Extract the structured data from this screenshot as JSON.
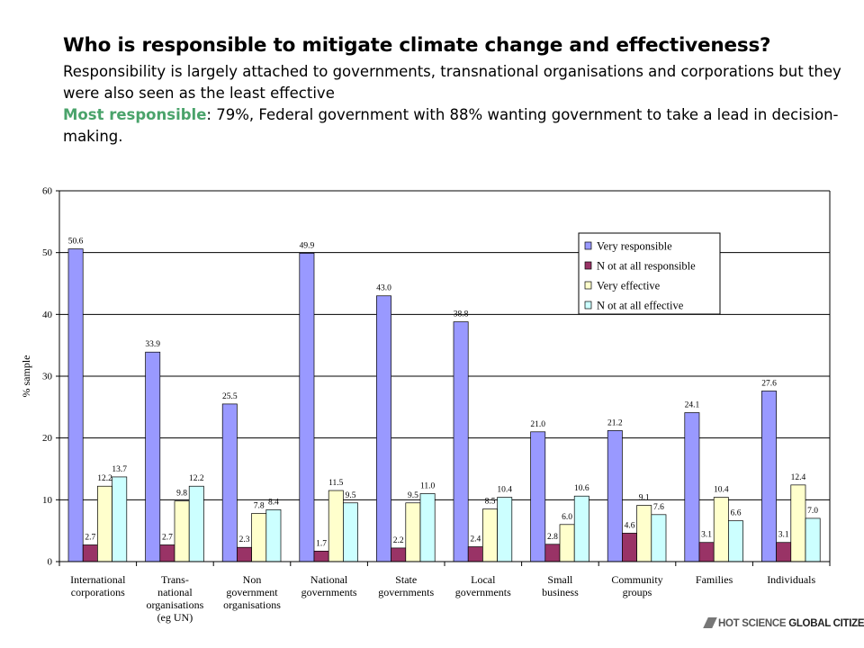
{
  "header": {
    "title": "Who is responsible to mitigate climate change and effectiveness?",
    "subtitle": "Responsibility is largely attached to governments, transnational organisations and corporations  but they were also seen as the least effective",
    "note_highlight": "Most responsible",
    "note_rest": ": 79%, Federal government with 88% wanting government to take a lead in decision-making."
  },
  "logo": {
    "part1": "HOT SCIENCE ",
    "part2": "GLOBAL CITIZENS"
  },
  "chart_data": {
    "type": "bar",
    "ylabel": "% sample",
    "ylim": [
      0,
      60
    ],
    "yticks": [
      0,
      10,
      20,
      30,
      40,
      50,
      60
    ],
    "legend_position": "top-right",
    "categories": [
      [
        "International",
        "corporations"
      ],
      [
        "Trans-",
        "national",
        "organisations",
        "(eg UN)"
      ],
      [
        "Non",
        "government",
        "organisations"
      ],
      [
        "National",
        "governments"
      ],
      [
        "State",
        "governments"
      ],
      [
        "Local",
        "governments"
      ],
      [
        "Small",
        "business"
      ],
      [
        "Community",
        "groups"
      ],
      [
        "Families"
      ],
      [
        "Individuals"
      ]
    ],
    "series": [
      {
        "name": "Very responsible",
        "color": "#9999ff",
        "values": [
          50.6,
          33.9,
          25.5,
          49.9,
          43.0,
          38.8,
          21.0,
          21.2,
          24.1,
          27.6
        ],
        "labels": [
          "50.6",
          "33.9",
          "25.5",
          "49.9",
          "43.0",
          "38.8",
          "21.0",
          "21.2",
          "24.1",
          "27.6"
        ]
      },
      {
        "name": "N ot at all responsible",
        "color": "#993366",
        "values": [
          2.7,
          2.7,
          2.3,
          1.7,
          2.2,
          2.4,
          2.8,
          4.6,
          3.1,
          3.1
        ],
        "labels": [
          "2.7",
          "2.7",
          "2.3",
          "1.7",
          "2.2",
          "2.4",
          "2.8",
          "4.6",
          "3.1",
          "3.1"
        ]
      },
      {
        "name": "Very effective",
        "color": "#ffffcc",
        "values": [
          12.2,
          9.8,
          7.8,
          11.5,
          9.5,
          8.5,
          6.0,
          9.1,
          10.4,
          12.4
        ],
        "labels": [
          "12.2",
          "9.8",
          "7.8",
          "11.5",
          "9.5",
          "8.5",
          "6.0",
          "9.1",
          "10.4",
          "12.4"
        ]
      },
      {
        "name": "N ot at all effective",
        "color": "#ccffff",
        "values": [
          13.7,
          12.2,
          8.4,
          9.5,
          11.0,
          10.4,
          10.6,
          7.6,
          6.6,
          7.0
        ],
        "labels": [
          "13.7",
          "12.2",
          "8.4",
          "9.5",
          "11.0",
          "10.4",
          "10.6",
          "7.6",
          "6.6",
          "7.0"
        ]
      }
    ]
  }
}
